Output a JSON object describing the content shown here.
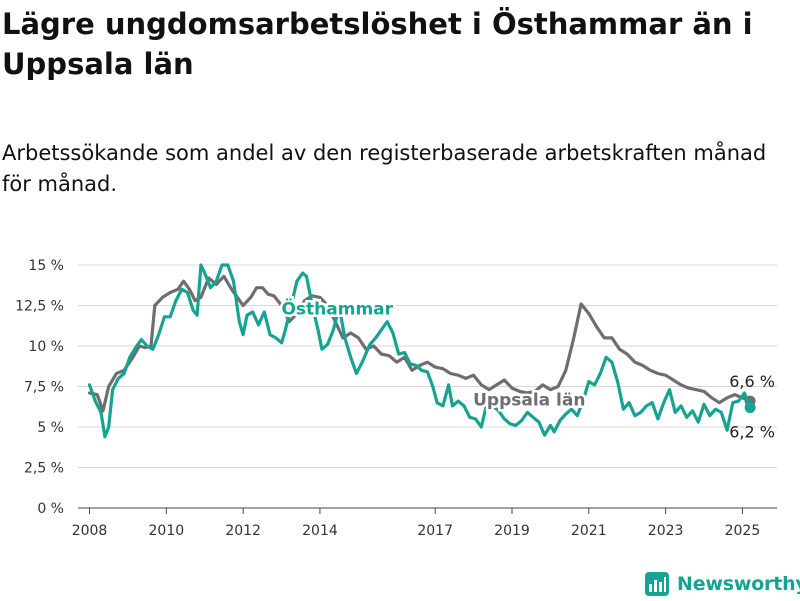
{
  "title": "Lägre ungdomsarbetslöshet i Östhammar än i Uppsala län",
  "subtitle": "Arbetssökande som andel av den registerbaserade arbetskraften månad för månad.",
  "brand": {
    "name": "Newsworthy",
    "icon": "bar-chart-logo-icon"
  },
  "colors": {
    "osthammar": "#17a392",
    "uppsala": "#6e6d72",
    "grid": "#d9d9d9"
  },
  "chart_data": {
    "type": "line",
    "title": "Lägre ungdomsarbetslöshet i Östhammar än i Uppsala län",
    "subtitle": "Arbetssökande som andel av den registerbaserade arbetskraften månad för månad.",
    "xlabel": "",
    "ylabel": "",
    "xlim": [
      2007.7,
      2025.9
    ],
    "ylim": [
      0,
      15
    ],
    "grid": true,
    "y_ticks": [
      0,
      2.5,
      5,
      7.5,
      10,
      12.5,
      15
    ],
    "y_tick_labels": [
      "0 %",
      "2,5 %",
      "5 %",
      "7,5 %",
      "10 %",
      "12,5 %",
      "15 %"
    ],
    "x_ticks": [
      2008,
      2010,
      2012,
      2014,
      2017,
      2019,
      2021,
      2023,
      2025
    ],
    "x_tick_labels": [
      "2008",
      "2010",
      "2012",
      "2014",
      "2017",
      "2019",
      "2021",
      "2023",
      "2025"
    ],
    "series": [
      {
        "name": "Uppsala län",
        "color": "#6e6d72",
        "end_label": "6,6 %",
        "points": [
          [
            2008,
            7.1
          ],
          [
            2008.2,
            7.0
          ],
          [
            2008.35,
            6.0
          ],
          [
            2008.5,
            7.5
          ],
          [
            2008.7,
            8.3
          ],
          [
            2008.9,
            8.5
          ],
          [
            2009.1,
            9.2
          ],
          [
            2009.3,
            10.0
          ],
          [
            2009.45,
            9.9
          ],
          [
            2009.6,
            10.0
          ],
          [
            2009.7,
            12.5
          ],
          [
            2009.9,
            13.0
          ],
          [
            2010.1,
            13.3
          ],
          [
            2010.3,
            13.5
          ],
          [
            2010.45,
            14.0
          ],
          [
            2010.6,
            13.5
          ],
          [
            2010.75,
            12.8
          ],
          [
            2010.9,
            13.0
          ],
          [
            2011.1,
            14.2
          ],
          [
            2011.3,
            13.8
          ],
          [
            2011.5,
            14.3
          ],
          [
            2011.7,
            13.5
          ],
          [
            2011.85,
            13.0
          ],
          [
            2012.0,
            12.5
          ],
          [
            2012.2,
            13.0
          ],
          [
            2012.35,
            13.6
          ],
          [
            2012.5,
            13.6
          ],
          [
            2012.65,
            13.2
          ],
          [
            2012.8,
            13.1
          ],
          [
            2013.0,
            12.5
          ],
          [
            2013.2,
            11.5
          ],
          [
            2013.4,
            12.0
          ],
          [
            2013.6,
            12.8
          ],
          [
            2013.8,
            13.1
          ],
          [
            2014.0,
            13.0
          ],
          [
            2014.2,
            12.5
          ],
          [
            2014.4,
            11.5
          ],
          [
            2014.6,
            10.5
          ],
          [
            2014.8,
            10.8
          ],
          [
            2015.0,
            10.5
          ],
          [
            2015.2,
            9.8
          ],
          [
            2015.4,
            10.0
          ],
          [
            2015.6,
            9.5
          ],
          [
            2015.8,
            9.4
          ],
          [
            2016.0,
            9.0
          ],
          [
            2016.2,
            9.3
          ],
          [
            2016.4,
            8.5
          ],
          [
            2016.6,
            8.8
          ],
          [
            2016.8,
            9.0
          ],
          [
            2017.0,
            8.7
          ],
          [
            2017.2,
            8.6
          ],
          [
            2017.4,
            8.3
          ],
          [
            2017.6,
            8.2
          ],
          [
            2017.8,
            8.0
          ],
          [
            2018.0,
            8.2
          ],
          [
            2018.2,
            7.6
          ],
          [
            2018.4,
            7.3
          ],
          [
            2018.6,
            7.6
          ],
          [
            2018.8,
            7.9
          ],
          [
            2019.0,
            7.4
          ],
          [
            2019.2,
            7.2
          ],
          [
            2019.4,
            7.1
          ],
          [
            2019.6,
            7.2
          ],
          [
            2019.8,
            7.6
          ],
          [
            2020.0,
            7.3
          ],
          [
            2020.2,
            7.5
          ],
          [
            2020.4,
            8.5
          ],
          [
            2020.6,
            10.4
          ],
          [
            2020.8,
            12.6
          ],
          [
            2021.0,
            12.0
          ],
          [
            2021.2,
            11.2
          ],
          [
            2021.4,
            10.5
          ],
          [
            2021.6,
            10.5
          ],
          [
            2021.8,
            9.8
          ],
          [
            2022.0,
            9.5
          ],
          [
            2022.2,
            9.0
          ],
          [
            2022.4,
            8.8
          ],
          [
            2022.6,
            8.5
          ],
          [
            2022.8,
            8.3
          ],
          [
            2023.0,
            8.2
          ],
          [
            2023.2,
            7.9
          ],
          [
            2023.4,
            7.6
          ],
          [
            2023.6,
            7.4
          ],
          [
            2023.8,
            7.3
          ],
          [
            2024.0,
            7.2
          ],
          [
            2024.2,
            6.8
          ],
          [
            2024.4,
            6.5
          ],
          [
            2024.6,
            6.8
          ],
          [
            2024.8,
            7.0
          ],
          [
            2025.0,
            6.8
          ],
          [
            2025.2,
            6.6
          ]
        ]
      },
      {
        "name": "Östhammar",
        "color": "#17a392",
        "end_label": "6,2 %",
        "points": [
          [
            2008,
            7.6
          ],
          [
            2008.15,
            6.6
          ],
          [
            2008.3,
            5.9
          ],
          [
            2008.4,
            4.4
          ],
          [
            2008.5,
            5.0
          ],
          [
            2008.6,
            7.3
          ],
          [
            2008.75,
            8.0
          ],
          [
            2008.9,
            8.3
          ],
          [
            2009.05,
            9.3
          ],
          [
            2009.2,
            9.9
          ],
          [
            2009.35,
            10.4
          ],
          [
            2009.5,
            10.0
          ],
          [
            2009.65,
            9.8
          ],
          [
            2009.8,
            10.7
          ],
          [
            2009.95,
            11.8
          ],
          [
            2010.1,
            11.8
          ],
          [
            2010.25,
            12.8
          ],
          [
            2010.4,
            13.5
          ],
          [
            2010.55,
            13.3
          ],
          [
            2010.7,
            12.2
          ],
          [
            2010.8,
            11.9
          ],
          [
            2010.9,
            15.0
          ],
          [
            2011.0,
            14.5
          ],
          [
            2011.15,
            13.6
          ],
          [
            2011.3,
            14.0
          ],
          [
            2011.45,
            15.0
          ],
          [
            2011.6,
            15.0
          ],
          [
            2011.75,
            14.0
          ],
          [
            2011.9,
            11.5
          ],
          [
            2012.0,
            10.7
          ],
          [
            2012.1,
            11.9
          ],
          [
            2012.25,
            12.1
          ],
          [
            2012.4,
            11.3
          ],
          [
            2012.55,
            12.1
          ],
          [
            2012.7,
            10.7
          ],
          [
            2012.85,
            10.5
          ],
          [
            2013.0,
            10.2
          ],
          [
            2013.1,
            11.0
          ],
          [
            2013.25,
            12.5
          ],
          [
            2013.4,
            14.0
          ],
          [
            2013.55,
            14.5
          ],
          [
            2013.65,
            14.3
          ],
          [
            2013.8,
            12.5
          ],
          [
            2013.95,
            11.0
          ],
          [
            2014.05,
            9.8
          ],
          [
            2014.2,
            10.1
          ],
          [
            2014.35,
            11.0
          ],
          [
            2014.5,
            12.4
          ],
          [
            2014.65,
            10.5
          ],
          [
            2014.8,
            9.3
          ],
          [
            2014.95,
            8.3
          ],
          [
            2015.1,
            9.0
          ],
          [
            2015.3,
            10.1
          ],
          [
            2015.45,
            10.5
          ],
          [
            2015.6,
            11.0
          ],
          [
            2015.75,
            11.5
          ],
          [
            2015.9,
            10.8
          ],
          [
            2016.05,
            9.5
          ],
          [
            2016.2,
            9.6
          ],
          [
            2016.35,
            8.9
          ],
          [
            2016.5,
            8.8
          ],
          [
            2016.65,
            8.5
          ],
          [
            2016.8,
            8.4
          ],
          [
            2016.95,
            7.4
          ],
          [
            2017.05,
            6.5
          ],
          [
            2017.2,
            6.3
          ],
          [
            2017.35,
            7.6
          ],
          [
            2017.45,
            6.3
          ],
          [
            2017.6,
            6.6
          ],
          [
            2017.75,
            6.3
          ],
          [
            2017.9,
            5.6
          ],
          [
            2018.05,
            5.5
          ],
          [
            2018.2,
            5.0
          ],
          [
            2018.35,
            6.5
          ],
          [
            2018.5,
            6.3
          ],
          [
            2018.65,
            6.0
          ],
          [
            2018.8,
            5.5
          ],
          [
            2018.95,
            5.2
          ],
          [
            2019.1,
            5.1
          ],
          [
            2019.25,
            5.4
          ],
          [
            2019.4,
            5.9
          ],
          [
            2019.55,
            5.6
          ],
          [
            2019.7,
            5.3
          ],
          [
            2019.85,
            4.5
          ],
          [
            2020.0,
            5.1
          ],
          [
            2020.1,
            4.7
          ],
          [
            2020.25,
            5.4
          ],
          [
            2020.4,
            5.8
          ],
          [
            2020.55,
            6.1
          ],
          [
            2020.7,
            5.7
          ],
          [
            2020.85,
            6.6
          ],
          [
            2021.0,
            7.8
          ],
          [
            2021.15,
            7.6
          ],
          [
            2021.3,
            8.3
          ],
          [
            2021.45,
            9.3
          ],
          [
            2021.6,
            9.0
          ],
          [
            2021.75,
            7.8
          ],
          [
            2021.9,
            6.1
          ],
          [
            2022.05,
            6.5
          ],
          [
            2022.2,
            5.7
          ],
          [
            2022.35,
            5.9
          ],
          [
            2022.5,
            6.3
          ],
          [
            2022.65,
            6.5
          ],
          [
            2022.8,
            5.5
          ],
          [
            2022.95,
            6.5
          ],
          [
            2023.1,
            7.3
          ],
          [
            2023.25,
            5.9
          ],
          [
            2023.4,
            6.3
          ],
          [
            2023.55,
            5.6
          ],
          [
            2023.7,
            6.0
          ],
          [
            2023.85,
            5.3
          ],
          [
            2024.0,
            6.4
          ],
          [
            2024.15,
            5.7
          ],
          [
            2024.3,
            6.1
          ],
          [
            2024.45,
            5.9
          ],
          [
            2024.6,
            4.8
          ],
          [
            2024.75,
            6.5
          ],
          [
            2024.9,
            6.6
          ],
          [
            2025.05,
            7.1
          ],
          [
            2025.2,
            6.2
          ]
        ]
      }
    ],
    "annotations": [
      {
        "text": "Östhammar",
        "series": "Östhammar",
        "at": [
          2014.45,
          12.3
        ]
      },
      {
        "text": "Uppsala län",
        "series": "Uppsala län",
        "at": [
          2019.45,
          6.7
        ]
      }
    ]
  }
}
